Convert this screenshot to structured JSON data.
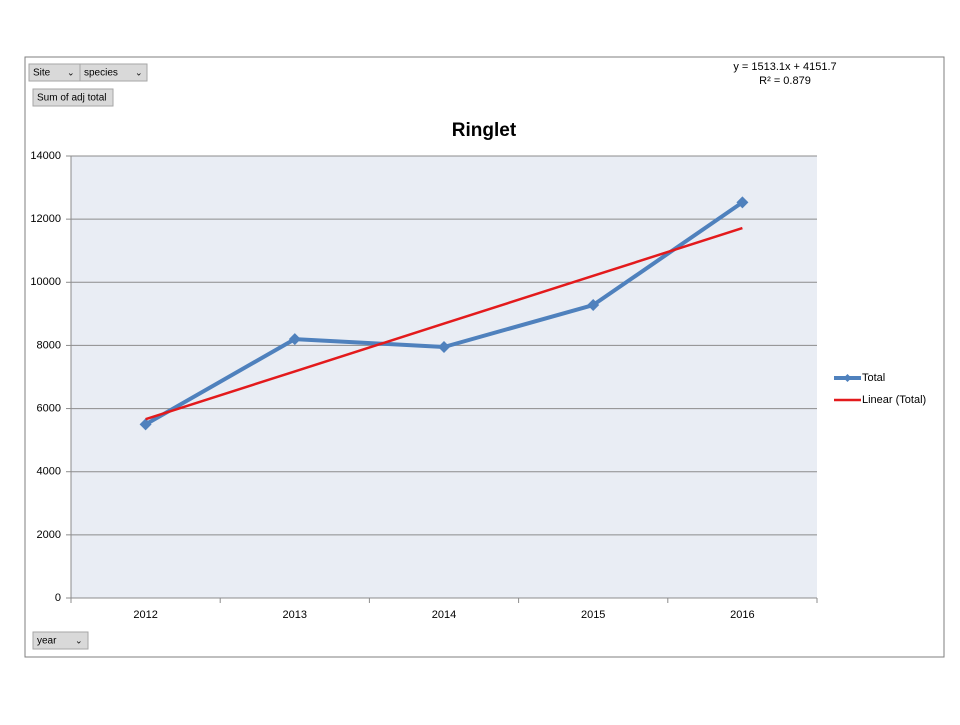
{
  "chart_data": {
    "type": "line",
    "title": "Ringlet",
    "categories": [
      "2012",
      "2013",
      "2014",
      "2015",
      "2016"
    ],
    "series": [
      {
        "name": "Total",
        "color": "#4f81bd",
        "values": [
          5500,
          8200,
          7950,
          9280,
          12530
        ],
        "marker": "diamond"
      },
      {
        "name": "Linear (Total)",
        "color": "#e31a1c",
        "values": [
          5664.8,
          7177.9,
          8691,
          10204.1,
          11717.2
        ]
      }
    ],
    "ylim": [
      0,
      14000
    ],
    "yticks": [
      0,
      2000,
      4000,
      6000,
      8000,
      10000,
      12000,
      14000
    ],
    "grid": true,
    "legend": "right",
    "trendline_equation": "y = 1513.1x + 4151.7",
    "trendline_r2": "R² = 0.879"
  },
  "pivot_fields": {
    "filters": [
      "Site",
      "species"
    ],
    "value": "Sum of adj total",
    "axis": "year"
  }
}
